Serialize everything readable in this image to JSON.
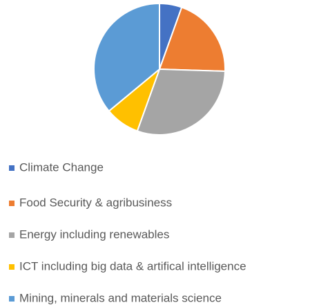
{
  "chart_data": {
    "type": "pie",
    "categories": [
      "Climate Change",
      "Food Security & agribusiness",
      "Energy including renewables",
      "ICT including big data & artifical intelligence",
      "Mining, minerals and materials science"
    ],
    "values": [
      5.5,
      20,
      30,
      8.5,
      36
    ],
    "colors": [
      "#4472c4",
      "#ed7d31",
      "#a5a5a5",
      "#ffc000",
      "#5b9bd5"
    ],
    "legend": "bottom"
  }
}
